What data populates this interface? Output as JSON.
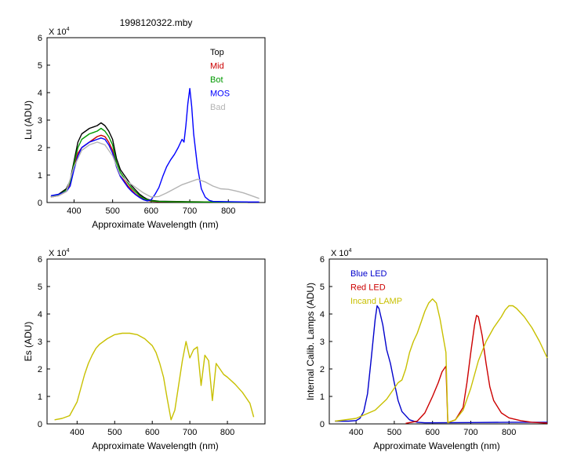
{
  "chart_data": [
    {
      "type": "line",
      "title": "1998120322.mby",
      "xlabel": "Approximate Wavelength (nm)",
      "ylabel": "Lu (ADU)",
      "y_multiplier": "X 10",
      "y_multiplier_exp": "4",
      "xlim": [
        330,
        895
      ],
      "ylim": [
        0,
        6
      ],
      "xticks": [
        400,
        500,
        600,
        700,
        800
      ],
      "yticks": [
        0,
        1,
        2,
        3,
        4,
        5,
        6
      ],
      "legend": "top-right",
      "series": [
        {
          "name": "Top",
          "color": "#000000",
          "x": [
            340,
            360,
            380,
            390,
            400,
            410,
            420,
            430,
            440,
            450,
            460,
            470,
            480,
            490,
            500,
            510,
            520,
            530,
            540,
            550,
            560,
            570,
            580,
            590,
            600,
            620,
            650,
            700,
            750,
            800,
            850
          ],
          "y": [
            0.2,
            0.3,
            0.5,
            0.8,
            1.5,
            2.2,
            2.5,
            2.6,
            2.7,
            2.75,
            2.8,
            2.9,
            2.8,
            2.6,
            2.3,
            1.6,
            1.2,
            1.0,
            0.8,
            0.6,
            0.45,
            0.3,
            0.2,
            0.12,
            0.08,
            0.05,
            0.04,
            0.03,
            0.02,
            0.01,
            0.01
          ]
        },
        {
          "name": "Mid",
          "color": "#cc0000",
          "x": [
            340,
            360,
            380,
            390,
            400,
            410,
            420,
            430,
            440,
            450,
            460,
            470,
            480,
            490,
            500,
            510,
            520,
            530,
            540,
            550,
            560,
            570,
            580,
            590,
            600,
            620,
            650,
            700,
            750,
            800,
            850
          ],
          "y": [
            0.2,
            0.25,
            0.4,
            0.7,
            1.3,
            1.8,
            2.0,
            2.1,
            2.2,
            2.3,
            2.4,
            2.45,
            2.4,
            2.2,
            1.9,
            1.3,
            0.95,
            0.8,
            0.6,
            0.45,
            0.3,
            0.2,
            0.12,
            0.08,
            0.05,
            0.03,
            0.03,
            0.02,
            0.02,
            0.01,
            0.01
          ]
        },
        {
          "name": "Bot",
          "color": "#009900",
          "x": [
            340,
            360,
            380,
            390,
            400,
            410,
            420,
            430,
            440,
            450,
            460,
            470,
            480,
            490,
            500,
            510,
            520,
            530,
            540,
            550,
            560,
            570,
            580,
            590,
            600,
            620,
            650,
            700,
            750,
            800,
            850
          ],
          "y": [
            0.2,
            0.28,
            0.45,
            0.75,
            1.4,
            2.0,
            2.3,
            2.4,
            2.5,
            2.55,
            2.6,
            2.7,
            2.6,
            2.4,
            2.1,
            1.45,
            1.1,
            0.9,
            0.7,
            0.52,
            0.38,
            0.25,
            0.15,
            0.1,
            0.06,
            0.04,
            0.03,
            0.02,
            0.02,
            0.01,
            0.01
          ]
        },
        {
          "name": "MOS",
          "color": "#0000ff",
          "x": [
            340,
            360,
            380,
            390,
            400,
            410,
            420,
            430,
            440,
            450,
            460,
            470,
            480,
            490,
            500,
            510,
            520,
            530,
            540,
            550,
            560,
            570,
            580,
            590,
            600,
            610,
            620,
            630,
            640,
            650,
            660,
            670,
            680,
            685,
            690,
            695,
            700,
            705,
            710,
            720,
            730,
            740,
            750,
            760,
            800,
            850,
            880
          ],
          "y": [
            0.25,
            0.3,
            0.4,
            0.6,
            1.2,
            1.7,
            2.0,
            2.1,
            2.2,
            2.25,
            2.3,
            2.35,
            2.3,
            2.1,
            1.8,
            1.3,
            0.95,
            0.75,
            0.55,
            0.4,
            0.28,
            0.18,
            0.1,
            0.06,
            0.1,
            0.3,
            0.55,
            0.95,
            1.3,
            1.55,
            1.75,
            2.0,
            2.3,
            2.2,
            2.8,
            3.6,
            4.15,
            3.5,
            2.5,
            1.3,
            0.5,
            0.2,
            0.08,
            0.04,
            0.03,
            0.02,
            0.02
          ]
        },
        {
          "name": "Bad",
          "color": "#b4b4b4",
          "x": [
            340,
            360,
            380,
            400,
            420,
            440,
            460,
            480,
            500,
            520,
            540,
            560,
            580,
            600,
            620,
            640,
            660,
            680,
            700,
            720,
            740,
            760,
            780,
            800,
            820,
            840,
            860,
            880
          ],
          "y": [
            0.2,
            0.25,
            0.4,
            1.3,
            1.9,
            2.1,
            2.2,
            2.1,
            1.7,
            1.0,
            0.75,
            0.55,
            0.35,
            0.2,
            0.22,
            0.35,
            0.5,
            0.65,
            0.75,
            0.85,
            0.75,
            0.6,
            0.5,
            0.48,
            0.42,
            0.35,
            0.25,
            0.15
          ]
        }
      ]
    },
    {
      "type": "line",
      "title": "",
      "xlabel": "Approximate Wavelength (nm)",
      "ylabel": "Es (ADU)",
      "y_multiplier": "X 10",
      "y_multiplier_exp": "4",
      "xlim": [
        320,
        900
      ],
      "ylim": [
        0,
        6
      ],
      "xticks": [
        400,
        500,
        600,
        700,
        800
      ],
      "yticks": [
        0,
        1,
        2,
        3,
        4,
        5,
        6
      ],
      "series": [
        {
          "name": "",
          "color": "#c8c000",
          "x": [
            340,
            360,
            380,
            400,
            410,
            420,
            430,
            440,
            450,
            460,
            480,
            500,
            520,
            540,
            560,
            580,
            600,
            610,
            620,
            630,
            640,
            650,
            660,
            670,
            680,
            690,
            700,
            710,
            720,
            730,
            740,
            750,
            760,
            770,
            780,
            790,
            800,
            820,
            840,
            860,
            870
          ],
          "y": [
            0.15,
            0.2,
            0.3,
            0.8,
            1.3,
            1.8,
            2.2,
            2.5,
            2.75,
            2.9,
            3.1,
            3.25,
            3.3,
            3.3,
            3.25,
            3.1,
            2.85,
            2.6,
            2.2,
            1.7,
            0.9,
            0.15,
            0.5,
            1.4,
            2.3,
            3.0,
            2.4,
            2.7,
            2.8,
            1.4,
            2.5,
            2.3,
            0.85,
            2.2,
            2.0,
            1.8,
            1.7,
            1.45,
            1.15,
            0.75,
            0.25
          ]
        }
      ]
    },
    {
      "type": "line",
      "title": "",
      "xlabel": "Approximate Wavelength (nm)",
      "ylabel": "Internal Calib. Lamps (ADU)",
      "y_multiplier": "X 10",
      "y_multiplier_exp": "4",
      "xlim": [
        330,
        900
      ],
      "ylim": [
        0,
        6
      ],
      "xticks": [
        400,
        500,
        600,
        700,
        800
      ],
      "yticks": [
        0,
        1,
        2,
        3,
        4,
        5,
        6
      ],
      "legend": "top-left",
      "series": [
        {
          "name": "Blue LED",
          "color": "#0000cc",
          "x": [
            345,
            380,
            400,
            410,
            420,
            430,
            440,
            450,
            455,
            460,
            470,
            480,
            490,
            500,
            510,
            520,
            540,
            560,
            580,
            600,
            700,
            800,
            900
          ],
          "y": [
            0.1,
            0.1,
            0.12,
            0.2,
            0.45,
            1.1,
            2.4,
            3.8,
            4.3,
            4.2,
            3.6,
            2.7,
            2.2,
            1.5,
            0.85,
            0.45,
            0.15,
            0.06,
            0.04,
            0.04,
            0.05,
            0.06,
            0.06
          ]
        },
        {
          "name": "Red LED",
          "color": "#cc0000",
          "x": [
            530,
            560,
            580,
            600,
            615,
            625,
            635,
            640,
            660,
            680,
            690,
            700,
            710,
            715,
            720,
            730,
            740,
            750,
            760,
            780,
            800,
            830,
            860,
            900
          ],
          "y": [
            0.02,
            0.1,
            0.4,
            1.0,
            1.5,
            1.9,
            2.1,
            0.05,
            0.15,
            0.6,
            1.5,
            2.6,
            3.6,
            3.95,
            3.9,
            3.2,
            2.2,
            1.35,
            0.85,
            0.4,
            0.22,
            0.12,
            0.06,
            0.03
          ]
        },
        {
          "name": "Incand LAMP",
          "color": "#c8c000",
          "x": [
            345,
            400,
            450,
            480,
            500,
            510,
            520,
            530,
            540,
            550,
            560,
            570,
            580,
            590,
            600,
            610,
            620,
            630,
            635,
            640,
            660,
            680,
            700,
            720,
            740,
            760,
            780,
            790,
            800,
            810,
            820,
            840,
            860,
            880,
            900
          ],
          "y": [
            0.1,
            0.2,
            0.5,
            0.9,
            1.3,
            1.5,
            1.6,
            2.0,
            2.6,
            3.0,
            3.3,
            3.7,
            4.1,
            4.4,
            4.55,
            4.4,
            3.8,
            3.0,
            2.6,
            0.05,
            0.15,
            0.5,
            1.3,
            2.3,
            3.0,
            3.5,
            3.9,
            4.15,
            4.3,
            4.3,
            4.2,
            3.9,
            3.5,
            3.0,
            2.4
          ]
        }
      ]
    }
  ]
}
